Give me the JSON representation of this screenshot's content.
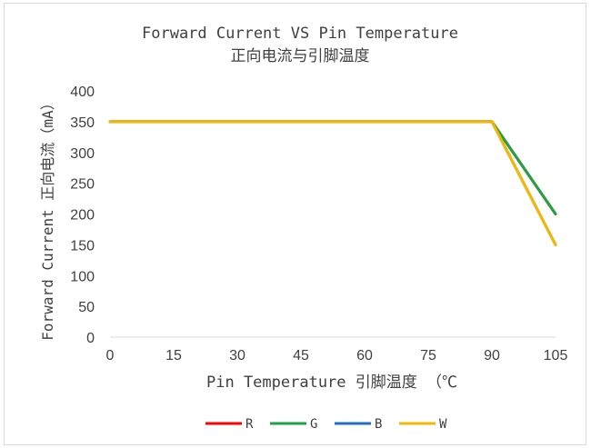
{
  "chart_data": {
    "type": "line",
    "title": "Forward Current VS Pin Temperature",
    "subtitle": "正向电流与引脚温度",
    "xlabel": "Pin Temperature 引脚温度 （℃",
    "ylabel": "Forward Current 正向电流（mA）",
    "x_ticks": [
      "0",
      "15",
      "30",
      "45",
      "60",
      "75",
      "90",
      "105"
    ],
    "y_ticks": [
      "0",
      "50",
      "100",
      "150",
      "200",
      "250",
      "300",
      "350",
      "400"
    ],
    "xlim": [
      0,
      105
    ],
    "ylim": [
      0,
      400
    ],
    "grid": false,
    "legend_position": "bottom",
    "series": [
      {
        "name": "R",
        "color": "#ff0000",
        "x": [
          0,
          90,
          105
        ],
        "y": [
          350,
          350,
          200
        ]
      },
      {
        "name": "G",
        "color": "#1fa345",
        "x": [
          0,
          90,
          105
        ],
        "y": [
          350,
          350,
          200
        ]
      },
      {
        "name": "B",
        "color": "#1f6fbf",
        "x": [
          0,
          90,
          105
        ],
        "y": [
          350,
          350,
          150
        ]
      },
      {
        "name": "W",
        "color": "#f5b800",
        "x": [
          0,
          90,
          105
        ],
        "y": [
          350,
          350,
          150
        ]
      }
    ]
  }
}
